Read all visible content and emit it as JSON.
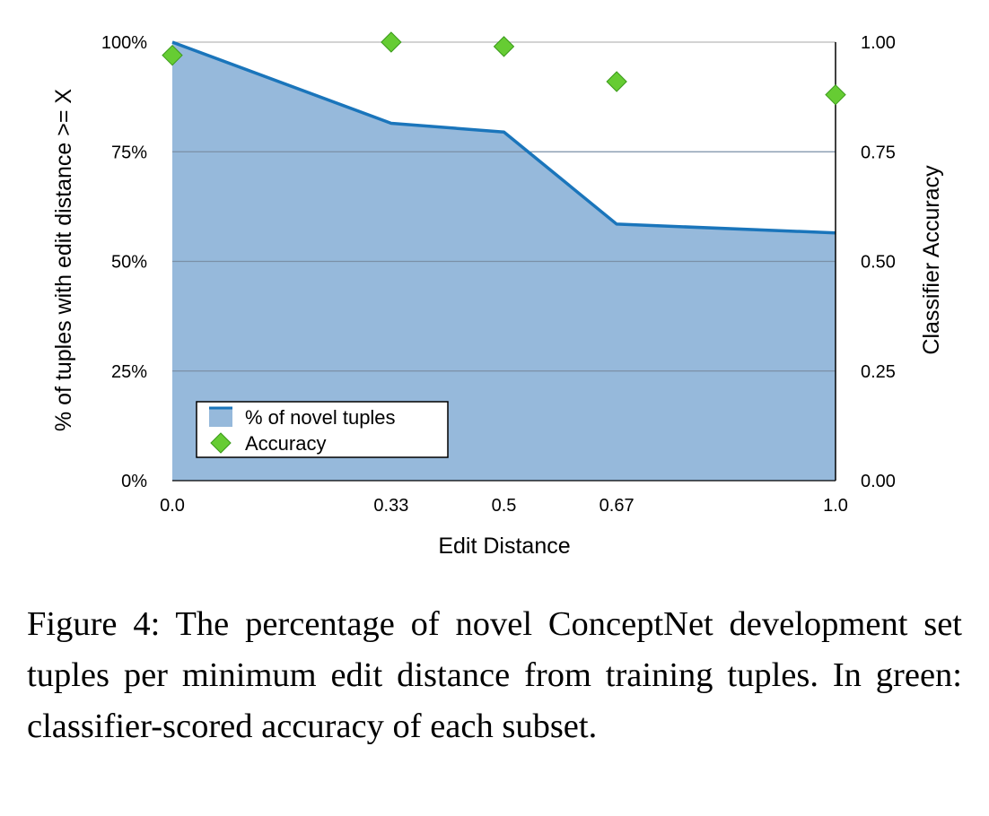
{
  "chart_data": {
    "type": "area",
    "x": [
      0.0,
      0.33,
      0.5,
      0.67,
      1.0
    ],
    "x_tick_labels": [
      "0.0",
      "0.33",
      "0.5",
      "0.67",
      "1.0"
    ],
    "xlabel": "Edit Distance",
    "ylabel_left": "% of tuples with edit distance >= X",
    "ylabel_right": "Classifier Accuracy",
    "y_left_ticks": [
      "0%",
      "25%",
      "50%",
      "75%",
      "100%"
    ],
    "y_right_ticks": [
      "0.00",
      "0.25",
      "0.50",
      "0.75",
      "1.00"
    ],
    "ylim_left": [
      0,
      100
    ],
    "ylim_right": [
      0,
      1
    ],
    "grid": true,
    "legend_position": "bottom-left",
    "series": [
      {
        "name": "% of novel tuples",
        "type": "area",
        "axis": "left",
        "values": [
          100,
          81.5,
          79.5,
          58.5,
          56.5
        ],
        "color": "#1a75bb",
        "fill": "#96b9db"
      },
      {
        "name": "Accuracy",
        "type": "scatter",
        "axis": "right",
        "marker": "diamond",
        "values": [
          0.97,
          1.0,
          0.99,
          0.91,
          0.88
        ],
        "color": "#66cc33"
      }
    ]
  },
  "caption": "Figure 4:  The percentage of novel ConceptNet development set tuples per minimum edit distance from training tuples. In green: classifier-scored accuracy of each subset."
}
